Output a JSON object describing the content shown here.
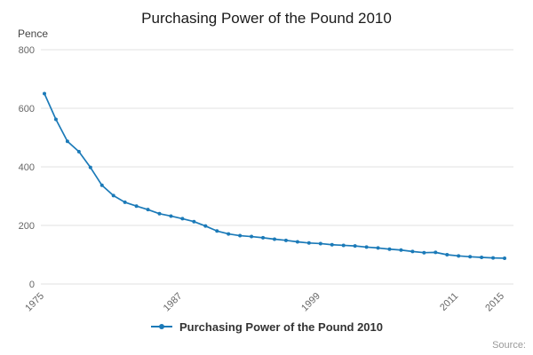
{
  "title": "Purchasing Power of the Pound 2010",
  "legend": {
    "label": "Purchasing Power of the Pound 2010"
  },
  "source_label": "Source:",
  "chart_data": {
    "type": "line",
    "title": "Purchasing Power of the Pound 2010",
    "xlabel": "",
    "ylabel": "Pence",
    "ylim": [
      0,
      800
    ],
    "yticks": [
      0,
      200,
      400,
      600,
      800
    ],
    "xticks": [
      1975,
      1987,
      1999,
      2011,
      2015
    ],
    "grid": true,
    "legend_position": "bottom",
    "line_color": "#1b7ab8",
    "grid_color": "#e0e0e0",
    "tick_color": "#666666",
    "x": [
      1975,
      1976,
      1977,
      1978,
      1979,
      1980,
      1981,
      1982,
      1983,
      1984,
      1985,
      1986,
      1987,
      1988,
      1989,
      1990,
      1991,
      1992,
      1993,
      1994,
      1995,
      1996,
      1997,
      1998,
      1999,
      2000,
      2001,
      2002,
      2003,
      2004,
      2005,
      2006,
      2007,
      2008,
      2009,
      2010,
      2011,
      2012,
      2013,
      2014,
      2015
    ],
    "values": [
      650,
      562,
      487,
      452,
      398,
      337,
      302,
      279,
      266,
      254,
      240,
      232,
      223,
      213,
      198,
      181,
      171,
      165,
      162,
      158,
      153,
      149,
      144,
      140,
      138,
      134,
      132,
      130,
      126,
      123,
      119,
      116,
      111,
      107,
      108,
      100,
      96,
      93,
      91,
      89,
      88
    ]
  }
}
